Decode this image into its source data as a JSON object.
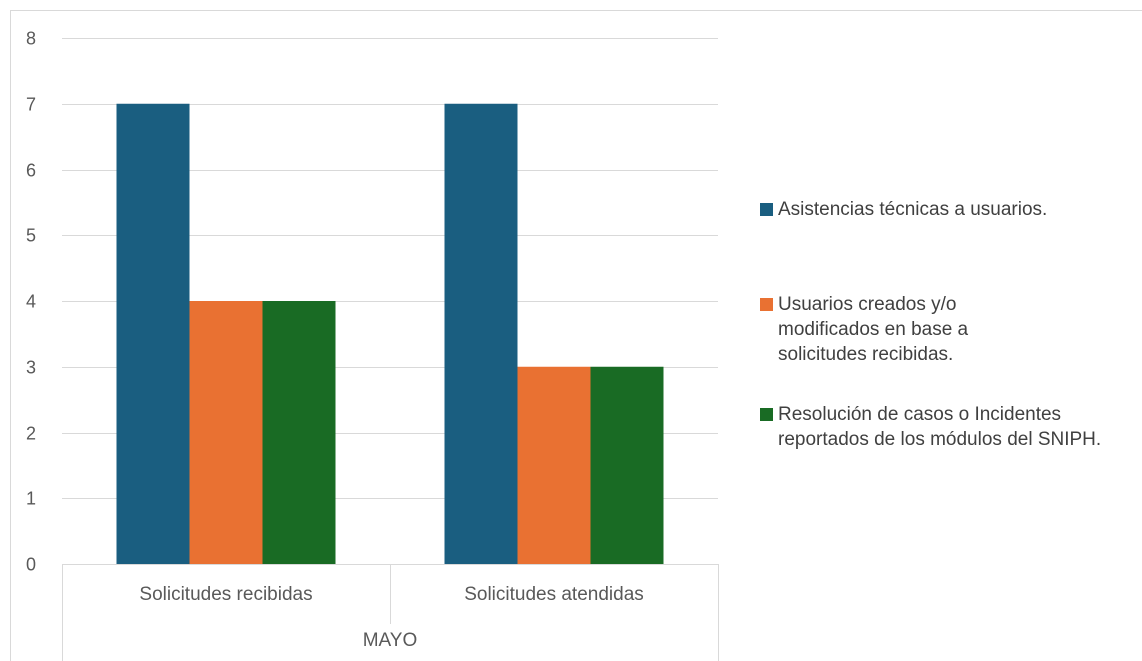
{
  "chart_data": {
    "type": "bar",
    "title": "",
    "xlabel": "",
    "ylabel": "",
    "group_label": "MAYO",
    "categories": [
      "Solicitudes recibidas",
      "Solicitudes atendidas"
    ],
    "ylim": [
      0,
      8
    ],
    "yticks": [
      "0",
      "1",
      "2",
      "3",
      "4",
      "5",
      "6",
      "7",
      "8"
    ],
    "grid": true,
    "legend_position": "right",
    "series": [
      {
        "name": "Asistencias técnicas a usuarios.",
        "color": "#1a5e80",
        "values": [
          7,
          7
        ]
      },
      {
        "name": "Usuarios creados y/o modificados en base a solicitudes recibidas.",
        "color": "#e97132",
        "values": [
          4,
          3
        ]
      },
      {
        "name": "Resolución de casos o Incidentes reportados de los módulos del SNIPH.",
        "color": "#196b24",
        "values": [
          4,
          3
        ]
      }
    ]
  }
}
